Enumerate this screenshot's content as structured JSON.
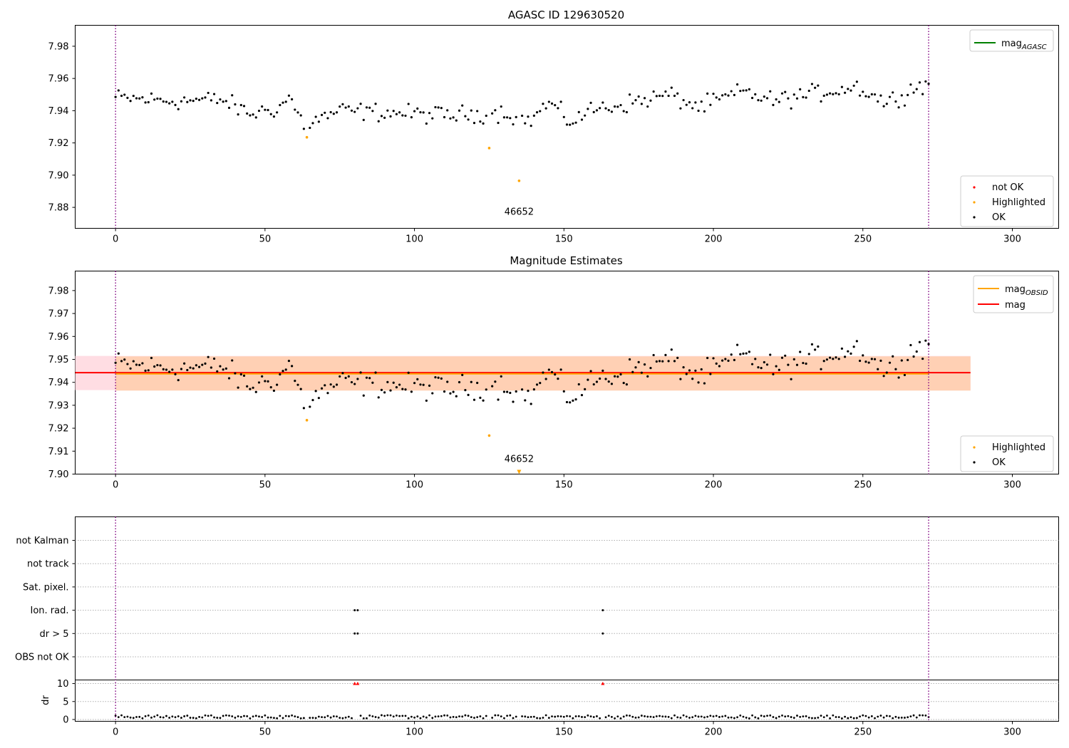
{
  "chart_data": [
    {
      "type": "scatter",
      "title": "AGASC ID 129630520",
      "xlim": [
        -13.5,
        315.5
      ],
      "ylim": [
        7.867,
        7.993
      ],
      "xticks": [
        0,
        50,
        100,
        150,
        200,
        250,
        300
      ],
      "yticks": [
        7.88,
        7.9,
        7.92,
        7.94,
        7.96,
        7.98
      ],
      "vlines": [
        0,
        272
      ],
      "annotations": [
        {
          "text": "46652",
          "x": 135,
          "y": 7.871
        }
      ],
      "legend_lines": {
        "placement": "upper-right",
        "entries": [
          {
            "base": "mag",
            "sub": "AGASC",
            "color": "#008000"
          }
        ]
      },
      "legend_points": {
        "placement": "lower-right",
        "entries": [
          {
            "label": "not OK",
            "color": "#ff0000"
          },
          {
            "label": "Highlighted",
            "color": "#ffa500"
          },
          {
            "label": "OK",
            "color": "#000000"
          }
        ]
      },
      "series": [
        {
          "name": "Highlighted",
          "color": "#ffa500",
          "x": [
            64,
            125,
            135
          ],
          "y": [
            7.9235,
            7.9168,
            7.8965
          ]
        }
      ]
    },
    {
      "type": "scatter",
      "title": "Magnitude Estimates",
      "xlim": [
        -13.5,
        315.5
      ],
      "ylim": [
        7.9,
        7.9885
      ],
      "xticks": [
        0,
        50,
        100,
        150,
        200,
        250,
        300
      ],
      "yticks": [
        7.9,
        7.91,
        7.92,
        7.93,
        7.94,
        7.95,
        7.96,
        7.97,
        7.98
      ],
      "vlines": [
        0,
        272
      ],
      "mag": 7.9442,
      "mag_band": [
        7.9366,
        7.9515
      ],
      "mag_obsid": 7.9437,
      "mag_obsid_band": [
        7.9364,
        7.9513
      ],
      "annotations": [
        {
          "text": "46652",
          "x": 135,
          "y": 7.9025
        }
      ],
      "legend_lines": {
        "placement": "upper-right",
        "entries": [
          {
            "base": "mag",
            "sub": "OBSID",
            "color": "#ffa500"
          },
          {
            "base": "mag",
            "sub": "",
            "color": "#ff0000"
          }
        ]
      },
      "legend_points": {
        "placement": "lower-right",
        "entries": [
          {
            "label": "Highlighted",
            "color": "#ffa500"
          },
          {
            "label": "OK",
            "color": "#000000"
          }
        ]
      },
      "series": [
        {
          "name": "Highlighted",
          "color": "#ffa500",
          "x": [
            64,
            125
          ],
          "y": [
            7.9235,
            7.9168
          ]
        },
        {
          "name": "offscale",
          "color": "#ffa500",
          "x": [
            135
          ],
          "y": [
            7.9
          ]
        }
      ]
    },
    {
      "type": "scatter",
      "title": "",
      "xlim": [
        -13.5,
        315.5
      ],
      "xticks": [
        0,
        50,
        100,
        150,
        200,
        250,
        300
      ],
      "vlines": [
        0,
        272
      ],
      "flag_labels": [
        "not Kalman",
        "not track",
        "Sat. pixel.",
        "Ion. rad.",
        "dr > 5",
        "OBS not OK"
      ],
      "flags": {
        "Ion. rad.": [
          80,
          81,
          163
        ],
        "dr > 5": [
          80,
          81,
          163
        ]
      },
      "dr": {
        "ylabel": "dr",
        "ylim": [
          -0.5,
          11
        ],
        "yticks": [
          0,
          5,
          10
        ],
        "clipped_x": [
          80,
          81,
          163
        ],
        "clipped_color": "#ff0000"
      }
    }
  ],
  "colors": {
    "ok": "#000000",
    "highlight": "#ffa500",
    "not_ok": "#ff0000",
    "vline": "#800080",
    "agasc_line": "#008000",
    "mag_line": "#ff0000",
    "band_red": "#ffdde3",
    "band_orange": "#ffd0b4",
    "grid": "#b0b0b0"
  }
}
